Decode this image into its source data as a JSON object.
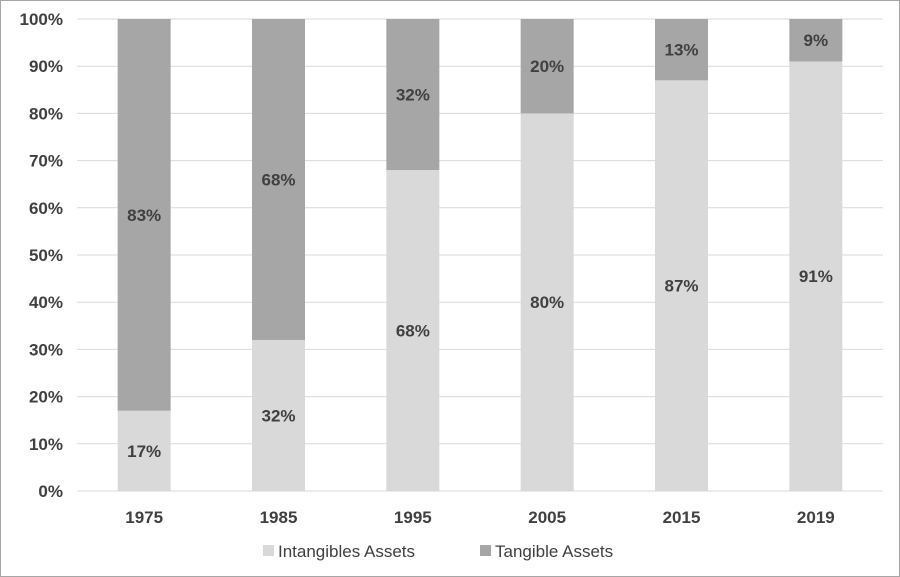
{
  "chart_data": {
    "type": "bar",
    "stacked": true,
    "categories": [
      "1975",
      "1985",
      "1995",
      "2005",
      "2015",
      "2019"
    ],
    "series": [
      {
        "name": "Intangibles Assets",
        "values": [
          17,
          32,
          68,
          80,
          87,
          91
        ],
        "labels": [
          "17%",
          "32%",
          "68%",
          "80%",
          "87%",
          "91%"
        ],
        "color": "#d9d9d9"
      },
      {
        "name": "Tangible Assets",
        "values": [
          83,
          68,
          32,
          20,
          13,
          9
        ],
        "labels": [
          "83%",
          "68%",
          "32%",
          "20%",
          "13%",
          "9%"
        ],
        "color": "#a6a6a6"
      }
    ],
    "yticks": [
      "0%",
      "10%",
      "20%",
      "30%",
      "40%",
      "50%",
      "60%",
      "70%",
      "80%",
      "90%",
      "100%"
    ],
    "ylim": [
      0,
      100
    ],
    "title": "",
    "xlabel": "",
    "ylabel": "",
    "grid": true,
    "legend_position": "bottom"
  },
  "colors": {
    "gridline": "#d9d9d9",
    "text": "#404040",
    "border": "#a6a6a6"
  }
}
